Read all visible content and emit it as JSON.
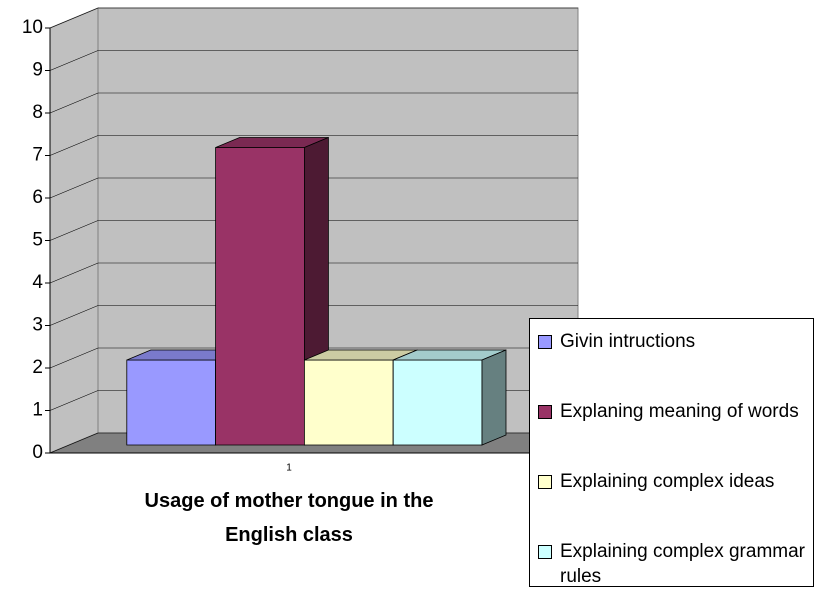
{
  "chart_data": {
    "type": "bar3d",
    "categories": [
      "1"
    ],
    "x_label": "Usage of mother tongue in the English class",
    "series": [
      {
        "name": "Givin intructions",
        "color": "#9999ff",
        "values": [
          2
        ]
      },
      {
        "name": "Explaning meaning of words",
        "color": "#993366",
        "values": [
          7
        ]
      },
      {
        "name": "Explaining complex ideas",
        "color": "#ffffcc",
        "values": [
          2
        ]
      },
      {
        "name": "Explaining complex grammar rules",
        "color": "#ccffff",
        "values": [
          2
        ]
      }
    ],
    "ylim": [
      0,
      10
    ],
    "yticks": [
      0,
      1,
      2,
      3,
      4,
      5,
      6,
      7,
      8,
      9,
      10
    ],
    "grid": true,
    "legend": "right"
  }
}
